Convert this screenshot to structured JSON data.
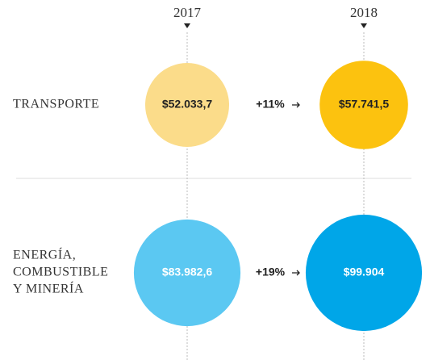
{
  "chart_data": {
    "type": "bubble",
    "categories": [
      [
        "TRANSPORTE"
      ],
      [
        "ENERGÍA,",
        "COMBUSTIBLE",
        "Y MINERÍA"
      ]
    ],
    "series": [
      {
        "name": "2017",
        "colors": [
          "#fbdc8a",
          "#5bc8f2"
        ],
        "values": [
          52033.7,
          83982.6
        ],
        "value_labels": [
          "$52.033,7",
          "$83.982,6"
        ]
      },
      {
        "name": "2018",
        "colors": [
          "#fcc20f",
          "#00a6e8"
        ],
        "values": [
          57741.5,
          99904
        ],
        "value_labels": [
          "$57.741,5",
          "$99.904"
        ]
      }
    ],
    "changes": [
      {
        "value": 11,
        "label": "+11%"
      },
      {
        "value": 19,
        "label": "+19%"
      }
    ]
  }
}
